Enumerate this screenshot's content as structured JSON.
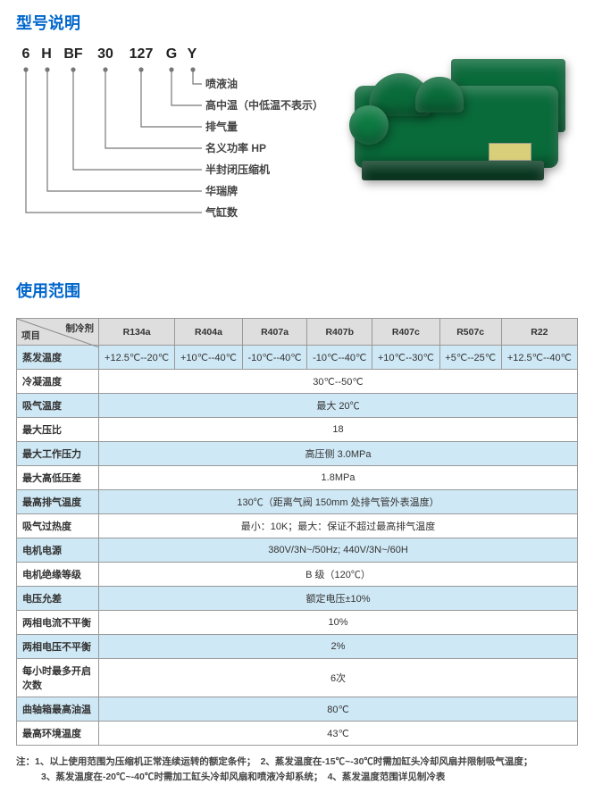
{
  "model_title": "型号说明",
  "model_codes": [
    "6",
    "H",
    "BF",
    "30",
    "127",
    "G",
    "Y"
  ],
  "model_labels": [
    "喷液油",
    "高中温（中低温不表示）",
    "排气量",
    "名义功率 HP",
    "半封闭压缩机",
    "华瑞牌",
    "气缸数"
  ],
  "usage_title": "使用范围",
  "header_item": "项目",
  "header_refrigerant": "制冷剂",
  "refrigerants": [
    "R134a",
    "R404a",
    "R407a",
    "R407b",
    "R407c",
    "R507c",
    "R22"
  ],
  "rows": [
    {
      "label": "蒸发温度",
      "values": [
        "+12.5℃--20℃",
        "+10℃--40℃",
        "-10℃--40℃",
        "-10℃--40℃",
        "+10℃--30℃",
        "+5℃--25℃",
        "+12.5℃--40℃"
      ],
      "hl": true
    },
    {
      "label": "冷凝温度",
      "span": "30℃--50℃",
      "hl": false
    },
    {
      "label": "吸气温度",
      "span": "最大 20℃",
      "hl": true
    },
    {
      "label": "最大压比",
      "span": "18",
      "hl": false
    },
    {
      "label": "最大工作压力",
      "span": "高压侧 3.0MPa",
      "hl": true
    },
    {
      "label": "最大高低压差",
      "span": "1.8MPa",
      "hl": false
    },
    {
      "label": "最高排气温度",
      "span": "130℃（距离气阀 150mm 处排气管外表温度）",
      "hl": true
    },
    {
      "label": "吸气过热度",
      "span": "最小：10K；最大：保证不超过最高排气温度",
      "hl": false
    },
    {
      "label": "电机电源",
      "span": "380V/3N~/50Hz; 440V/3N~/60H",
      "hl": true
    },
    {
      "label": "电机绝缘等级",
      "span": "B 级（120℃）",
      "hl": false
    },
    {
      "label": "电压允差",
      "span": "额定电压±10%",
      "hl": true
    },
    {
      "label": "两相电流不平衡",
      "span": "10%",
      "hl": false
    },
    {
      "label": "两相电压不平衡",
      "span": "2%",
      "hl": true
    },
    {
      "label": "每小时最多开启次数",
      "span": "6次",
      "hl": false
    },
    {
      "label": "曲轴箱最高油温",
      "span": "80℃",
      "hl": true
    },
    {
      "label": "最高环境温度",
      "span": "43℃",
      "hl": false
    }
  ],
  "note_line1": "注：1、以上使用范围为压缩机正常连续运转的额定条件；　2、蒸发温度在-15℃~-30℃时需加缸头冷却风扇并限制吸气温度；",
  "note_line2": "3、蒸发温度在-20℃~-40℃时需加工缸头冷却风扇和喷液冷却系统；　4、蒸发温度范围详见制冷表"
}
